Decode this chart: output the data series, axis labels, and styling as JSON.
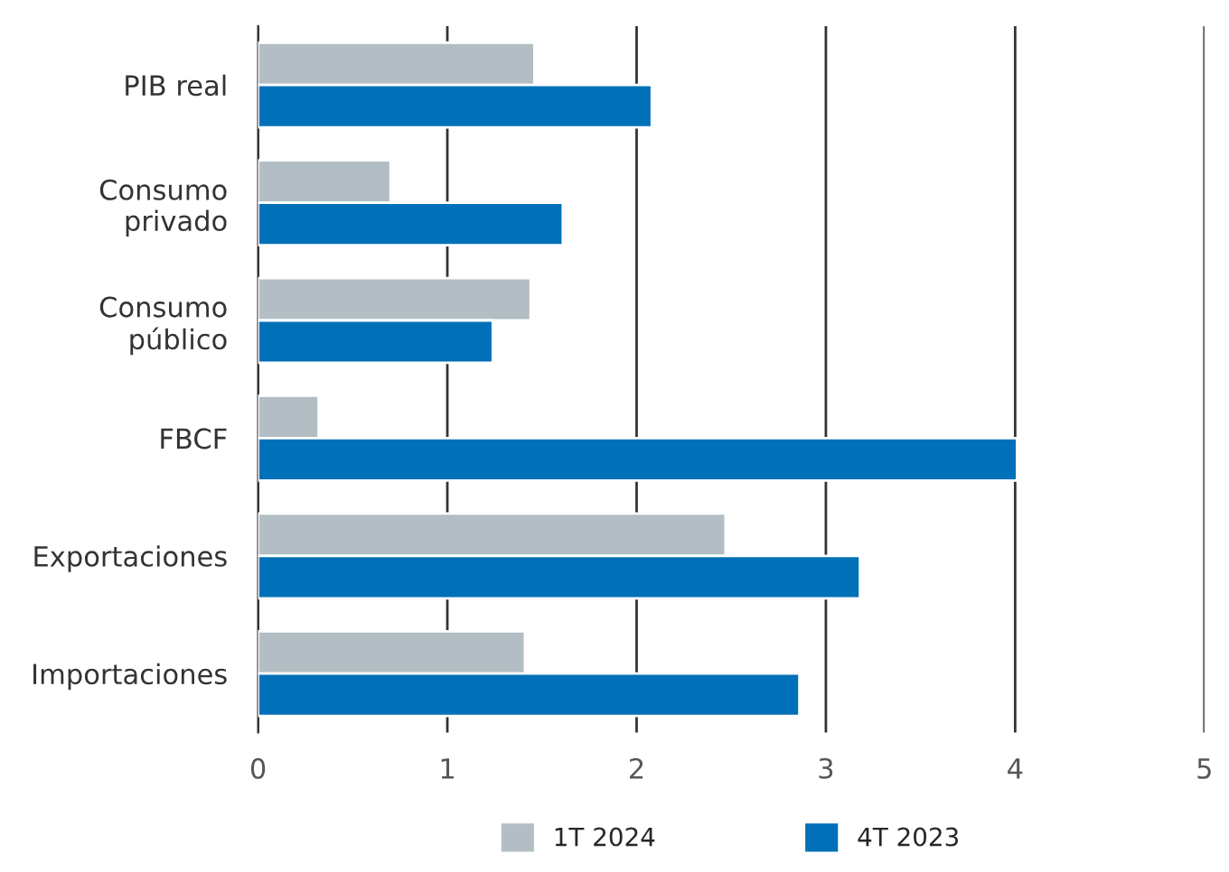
{
  "chart_data": {
    "type": "bar",
    "orientation": "horizontal",
    "categories": [
      "PIB real",
      "Consumo\nprivado",
      "Consumo\npúblico",
      "FBCF",
      "Exportaciones",
      "Importaciones"
    ],
    "series": [
      {
        "name": "1T 2024",
        "color": "#b2bec3",
        "values": [
          1.46,
          0.7,
          1.44,
          0.32,
          2.47,
          1.41
        ]
      },
      {
        "name": "4T 2023",
        "color": "#0070b8",
        "values": [
          2.08,
          1.61,
          1.24,
          4.01,
          3.18,
          2.86
        ]
      }
    ],
    "xlim": [
      0,
      5
    ],
    "xticks": [
      0,
      1,
      2,
      3,
      4,
      5
    ],
    "grid": "x",
    "legend": "bottom"
  }
}
